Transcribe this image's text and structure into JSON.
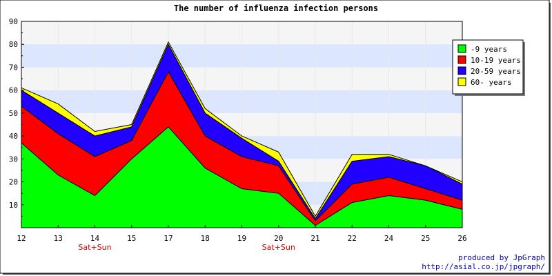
{
  "chart_data": {
    "type": "area",
    "stacked": true,
    "title": "The number of influenza infection persons",
    "categories": [
      "12",
      "13",
      "14",
      "15",
      "17",
      "18",
      "19",
      "20",
      "21",
      "22",
      "24",
      "25",
      "26"
    ],
    "category_notes": [
      {
        "category": "14",
        "text": "Sat+Sun"
      },
      {
        "category": "20",
        "text": "Sat+Sun"
      }
    ],
    "series": [
      {
        "name": "-9 years",
        "color": "#00ff00",
        "values": [
          37,
          23,
          14,
          30,
          44,
          26,
          17,
          15,
          1,
          11,
          14,
          12,
          8
        ]
      },
      {
        "name": "10-19 years",
        "color": "#ff0000",
        "values": [
          16,
          18,
          17,
          8,
          24,
          14,
          14,
          12,
          2,
          8,
          8,
          5,
          4
        ]
      },
      {
        "name": "20-59 years",
        "color": "#2200ff",
        "values": [
          7,
          9,
          9,
          6,
          12,
          10,
          8,
          2,
          1,
          10,
          9,
          10,
          7
        ]
      },
      {
        "name": "60- years",
        "color": "#ffff00",
        "values": [
          1,
          4,
          2,
          1,
          1,
          2,
          1,
          4,
          1,
          3,
          1,
          0,
          1
        ]
      }
    ],
    "yticks": [
      10,
      20,
      30,
      40,
      50,
      60,
      70,
      80,
      90
    ],
    "ylim": [
      0,
      90
    ],
    "xlabel": "",
    "ylabel": "",
    "grid": "horizontal-bands",
    "legend_position": "top-right"
  },
  "credits": {
    "line1": "produced by JpGraph",
    "line2": "http://asial.co.jp/jpgraph/"
  }
}
